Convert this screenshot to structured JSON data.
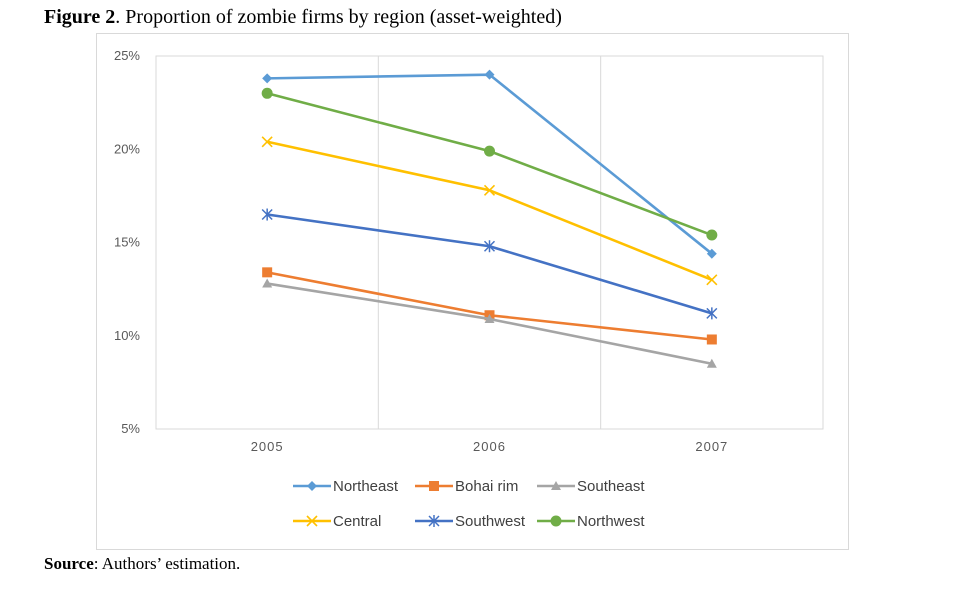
{
  "caption": {
    "label": "Figure 2",
    "text": ". Proportion of zombie firms by region (asset-weighted)"
  },
  "source": {
    "label": "Source",
    "text": ": Authors’ estimation."
  },
  "chart_data": {
    "type": "line",
    "title": "",
    "xlabel": "",
    "ylabel": "",
    "categories": [
      "2005",
      "2006",
      "2007"
    ],
    "ylim": [
      5,
      25
    ],
    "yticks": [
      "5%",
      "10%",
      "15%",
      "20%",
      "25%"
    ],
    "grid": "vertical",
    "legend_position": "bottom",
    "series": [
      {
        "name": "Northeast",
        "color": "#5b9bd5",
        "marker": "diamond",
        "values": [
          23.8,
          24.0,
          14.4
        ]
      },
      {
        "name": "Bohai rim",
        "color": "#ed7d31",
        "marker": "square",
        "values": [
          13.4,
          11.1,
          9.8
        ]
      },
      {
        "name": "Southeast",
        "color": "#a5a5a5",
        "marker": "triangle",
        "values": [
          12.8,
          10.9,
          8.5
        ]
      },
      {
        "name": "Central",
        "color": "#ffc000",
        "marker": "x",
        "values": [
          20.4,
          17.8,
          13.0
        ]
      },
      {
        "name": "Southwest",
        "color": "#4472c4",
        "marker": "star",
        "values": [
          16.5,
          14.8,
          11.2
        ]
      },
      {
        "name": "Northwest",
        "color": "#70ad47",
        "marker": "circle",
        "values": [
          23.0,
          19.9,
          15.4
        ]
      }
    ]
  }
}
